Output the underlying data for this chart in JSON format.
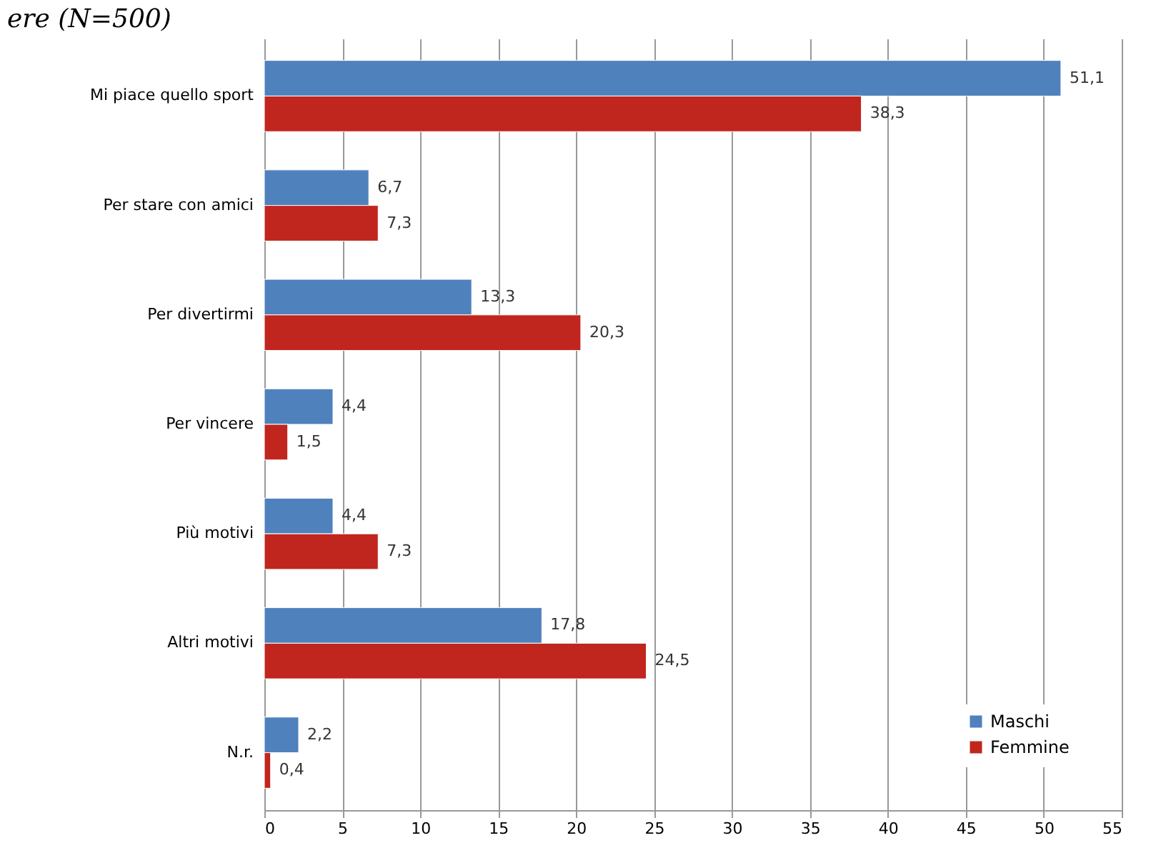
{
  "chart_data": {
    "type": "bar",
    "orientation": "horizontal",
    "title": "ere (N=500)",
    "categories": [
      "Mi piace quello sport",
      "Per stare con amici",
      "Per divertirmi",
      "Per vincere",
      "Più motivi",
      "Altri motivi",
      "N.r."
    ],
    "series": [
      {
        "name": "Maschi",
        "color": "#4f81bd",
        "values": [
          51.1,
          6.7,
          13.3,
          4.4,
          4.4,
          17.8,
          2.2
        ],
        "value_labels": [
          "51,1",
          "6,7",
          "13,3",
          "4,4",
          "4,4",
          "17,8",
          "2,2"
        ]
      },
      {
        "name": "Femmine",
        "color": "#c0261e",
        "values": [
          38.3,
          7.3,
          20.3,
          1.5,
          7.3,
          24.5,
          0.4
        ],
        "value_labels": [
          "38,3",
          "7,3",
          "20,3",
          "1,5",
          "7,3",
          "24,5",
          "0,4"
        ]
      }
    ],
    "xlim": [
      0,
      55
    ],
    "xticks": [
      0,
      5,
      10,
      15,
      20,
      25,
      30,
      35,
      40,
      45,
      50,
      55
    ],
    "grid": "x",
    "legend": "bottom right"
  }
}
